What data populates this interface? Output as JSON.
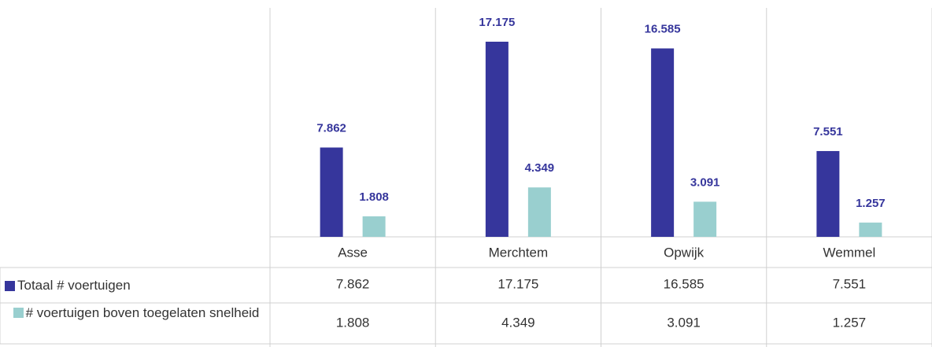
{
  "chart_data": {
    "type": "bar",
    "categories": [
      "Asse",
      "Merchtem",
      "Opwijk",
      "Wemmel"
    ],
    "series": [
      {
        "name": "Totaal # voertuigen",
        "color": "#36369c",
        "values": [
          7862,
          17175,
          16585,
          7551
        ],
        "value_labels": [
          "7.862",
          "17.175",
          "16.585",
          "7.551"
        ]
      },
      {
        "name": "# voertuigen boven toegelaten snelheid",
        "color": "#99cfcf",
        "values": [
          1808,
          4349,
          3091,
          1257
        ],
        "value_labels": [
          "1.808",
          "4.349",
          "3.091",
          "1.257"
        ]
      }
    ]
  }
}
